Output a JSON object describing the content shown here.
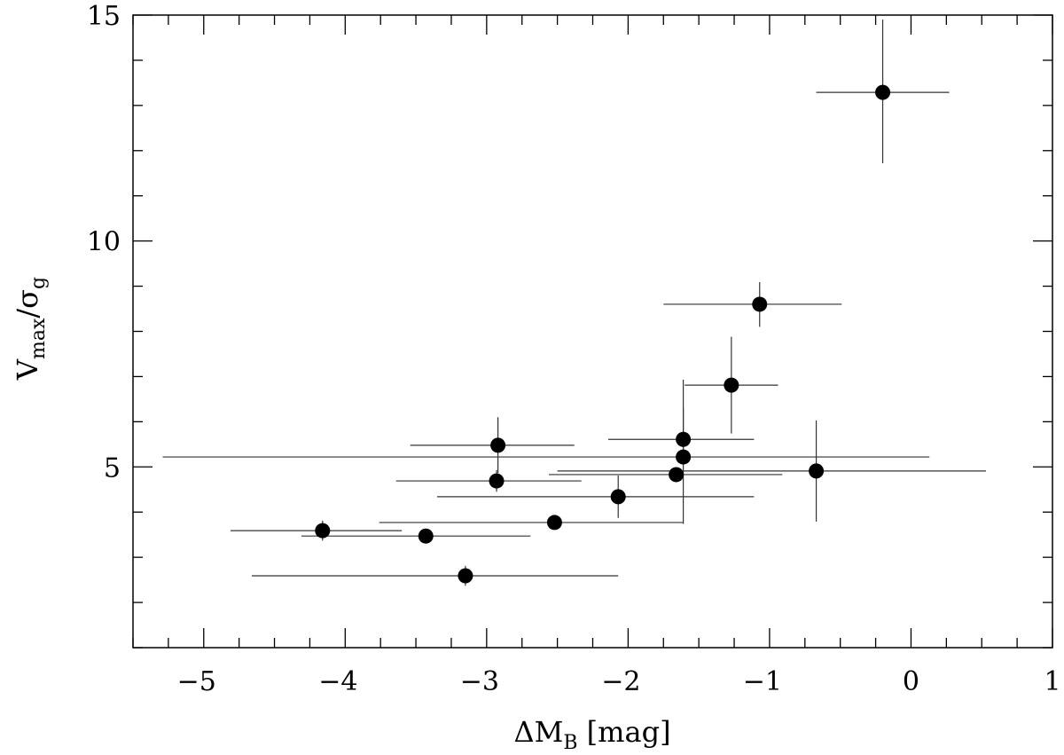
{
  "chart_data": {
    "type": "scatter",
    "title": "",
    "xlabel": {
      "prefix": "ΔM",
      "sub": "B",
      "suffix": " [mag]"
    },
    "ylabel": {
      "v": "V",
      "vsub": "max",
      "slash": "/σ",
      "ssub": "g"
    },
    "xlim": [
      -5.5,
      1
    ],
    "ylim": [
      1,
      15
    ],
    "xticks": [
      -5,
      -4,
      -3,
      -2,
      -1,
      0,
      1
    ],
    "xtick_labels": [
      "−5",
      "−4",
      "−3",
      "−2",
      "−1",
      "0",
      "1"
    ],
    "yticks": [
      5,
      10,
      15
    ],
    "ytick_labels": [
      "5",
      "10",
      "15"
    ],
    "x_minor_step": 0.25,
    "y_minor_step": 1,
    "grid": false,
    "points": [
      {
        "x": -0.2,
        "y": 13.29,
        "xlo": -0.67,
        "xhi": 0.27,
        "ylo": 11.72,
        "yhi": 14.9
      },
      {
        "x": -1.07,
        "y": 8.6,
        "xlo": -1.75,
        "xhi": -0.49,
        "ylo": 8.1,
        "yhi": 9.09
      },
      {
        "x": -1.27,
        "y": 6.81,
        "xlo": -1.6,
        "xhi": -0.94,
        "ylo": 5.74,
        "yhi": 7.88
      },
      {
        "x": -1.61,
        "y": 5.61,
        "xlo": -2.14,
        "xhi": -1.11,
        "ylo": 5.3,
        "yhi": 6.3
      },
      {
        "x": -1.61,
        "y": 5.22,
        "xlo": -5.29,
        "xhi": 0.13,
        "ylo": 3.74,
        "yhi": 6.93
      },
      {
        "x": -0.67,
        "y": 4.91,
        "xlo": -2.5,
        "xhi": 0.53,
        "ylo": 3.79,
        "yhi": 6.03
      },
      {
        "x": -1.66,
        "y": 4.83,
        "xlo": -2.56,
        "xhi": -0.91,
        "ylo": 4.7,
        "yhi": 4.95
      },
      {
        "x": -2.92,
        "y": 5.48,
        "xlo": -3.54,
        "xhi": -2.38,
        "ylo": 4.86,
        "yhi": 6.1
      },
      {
        "x": -2.93,
        "y": 4.69,
        "xlo": -3.64,
        "xhi": -2.33,
        "ylo": 4.45,
        "yhi": 4.93
      },
      {
        "x": -2.07,
        "y": 4.34,
        "xlo": -3.35,
        "xhi": -1.11,
        "ylo": 3.87,
        "yhi": 4.81
      },
      {
        "x": -2.52,
        "y": 3.77,
        "xlo": -3.76,
        "xhi": -1.61,
        "ylo": 3.67,
        "yhi": 3.87
      },
      {
        "x": -4.16,
        "y": 3.59,
        "xlo": -4.81,
        "xhi": -3.6,
        "ylo": 3.37,
        "yhi": 3.81
      },
      {
        "x": -3.43,
        "y": 3.47,
        "xlo": -4.31,
        "xhi": -2.69,
        "ylo": 3.37,
        "yhi": 3.57
      },
      {
        "x": -3.15,
        "y": 2.59,
        "xlo": -4.66,
        "xhi": -2.07,
        "ylo": 2.37,
        "yhi": 2.81
      }
    ]
  }
}
